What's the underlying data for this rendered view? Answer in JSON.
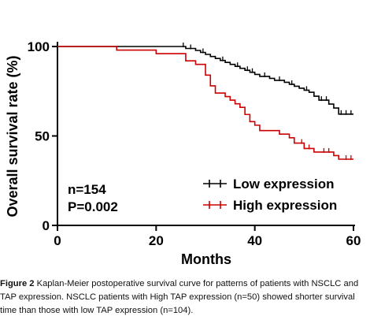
{
  "chart_data": {
    "type": "line",
    "subtype": "kaplan-meier",
    "xlabel": "Months",
    "ylabel": "Overall survival rate (%)",
    "xlim": [
      0,
      60
    ],
    "ylim": [
      0,
      100
    ],
    "xticks": [
      "0",
      "20",
      "40",
      "60"
    ],
    "yticks": [
      "0",
      "50",
      "100"
    ],
    "grid": false,
    "legend_position": "bottom-right",
    "annotations": [
      "n=154",
      "P=0.002"
    ],
    "series": [
      {
        "name": "Low expression",
        "color": "#000000",
        "steps": [
          [
            0,
            100
          ],
          [
            26,
            98.9
          ],
          [
            28,
            97.8
          ],
          [
            29,
            96.7
          ],
          [
            30,
            95.6
          ],
          [
            31,
            94.4
          ],
          [
            32,
            93.3
          ],
          [
            33,
            92.2
          ],
          [
            34,
            91.1
          ],
          [
            35,
            90
          ],
          [
            36,
            88.9
          ],
          [
            37,
            87.8
          ],
          [
            38,
            86.7
          ],
          [
            39,
            85.6
          ],
          [
            40,
            84.4
          ],
          [
            41,
            83.3
          ],
          [
            43,
            82.2
          ],
          [
            44,
            81.1
          ],
          [
            46,
            80
          ],
          [
            47,
            78.9
          ],
          [
            48,
            77.8
          ],
          [
            49,
            76.7
          ],
          [
            50,
            75.6
          ],
          [
            51,
            74.4
          ],
          [
            52,
            72.2
          ],
          [
            53,
            70
          ],
          [
            55,
            67.8
          ],
          [
            56,
            65.6
          ],
          [
            57,
            62.2
          ],
          [
            60,
            62.2
          ]
        ],
        "censor_x": [
          25.5,
          27,
          29.5,
          33.5,
          36.5,
          38.5,
          39.5,
          42,
          45,
          47.5,
          50.5,
          53.5,
          54.5,
          57.5,
          58.5,
          59.5
        ]
      },
      {
        "name": "High expression",
        "color": "#cc0000",
        "steps": [
          [
            0,
            100
          ],
          [
            12,
            98
          ],
          [
            20,
            96
          ],
          [
            26,
            92
          ],
          [
            28,
            90
          ],
          [
            30,
            84
          ],
          [
            31,
            78
          ],
          [
            32,
            74
          ],
          [
            34,
            72
          ],
          [
            35,
            70
          ],
          [
            36,
            68
          ],
          [
            37,
            66
          ],
          [
            38,
            62
          ],
          [
            39,
            58
          ],
          [
            40,
            56
          ],
          [
            41,
            53
          ],
          [
            45,
            51
          ],
          [
            47,
            49
          ],
          [
            48,
            46
          ],
          [
            50,
            43
          ],
          [
            52,
            41
          ],
          [
            56,
            39
          ],
          [
            57,
            37
          ],
          [
            60,
            37
          ]
        ],
        "censor_x": [
          49.5,
          51,
          54,
          55,
          58.5,
          59.5
        ]
      }
    ]
  },
  "caption": {
    "figure_label": "Figure 2",
    "text": " Kaplan-Meier postoperative survival curve for patterns of patients with NSCLC and TAP expression. NSCLC patients with High TAP expression (n=50) showed shorter survival time than those with low TAP expression (n=104)."
  }
}
